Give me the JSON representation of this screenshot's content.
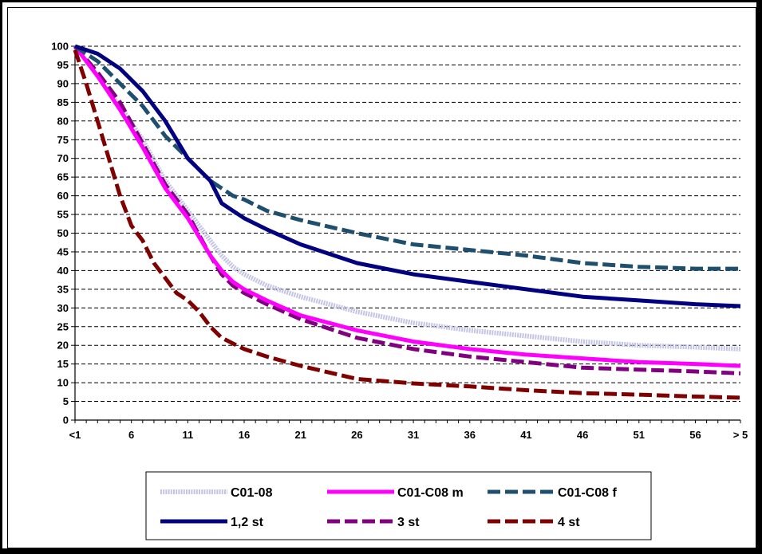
{
  "chart_data": {
    "type": "line",
    "title": "",
    "xlabel": "",
    "ylabel": "",
    "ylim": [
      0,
      100
    ],
    "y_ticks": [
      "0",
      "5",
      "10",
      "15",
      "20",
      "25",
      "30",
      "35",
      "40",
      "45",
      "50",
      "55",
      "60",
      "65",
      "70",
      "75",
      "80",
      "85",
      "90",
      "95",
      "100"
    ],
    "x_tick_labels": [
      "<1",
      "6",
      "11",
      "16",
      "21",
      "26",
      "31",
      "36",
      "41",
      "46",
      "51",
      "56",
      "> 5"
    ],
    "x_count": 60,
    "grid": "horizontal dashed",
    "legend_position": "bottom",
    "series": [
      {
        "name": "C01-08",
        "color": "#c4c4e6",
        "style": "dotted-thick",
        "points": [
          [
            1,
            100
          ],
          [
            3,
            92
          ],
          [
            5,
            84
          ],
          [
            7,
            75
          ],
          [
            9,
            64
          ],
          [
            11,
            56
          ],
          [
            13,
            48
          ],
          [
            14,
            44
          ],
          [
            15,
            41
          ],
          [
            16,
            39
          ],
          [
            18,
            36
          ],
          [
            21,
            33
          ],
          [
            26,
            29
          ],
          [
            31,
            26
          ],
          [
            36,
            24
          ],
          [
            41,
            22.5
          ],
          [
            46,
            21
          ],
          [
            51,
            20
          ],
          [
            56,
            19.5
          ],
          [
            60,
            19
          ]
        ]
      },
      {
        "name": "C01-C08 m",
        "color": "#ff00ff",
        "style": "solid",
        "points": [
          [
            1,
            100
          ],
          [
            3,
            92
          ],
          [
            5,
            83
          ],
          [
            7,
            73
          ],
          [
            9,
            62
          ],
          [
            11,
            54
          ],
          [
            13,
            44
          ],
          [
            14,
            40
          ],
          [
            15,
            37
          ],
          [
            16,
            35
          ],
          [
            18,
            32
          ],
          [
            21,
            28
          ],
          [
            26,
            24
          ],
          [
            31,
            21
          ],
          [
            36,
            19
          ],
          [
            41,
            17.5
          ],
          [
            46,
            16.5
          ],
          [
            51,
            15.5
          ],
          [
            56,
            15
          ],
          [
            60,
            14.5
          ]
        ]
      },
      {
        "name": "C01-C08 f",
        "color": "#1f4f6e",
        "style": "dashed",
        "points": [
          [
            1,
            100
          ],
          [
            3,
            96
          ],
          [
            5,
            90
          ],
          [
            7,
            84
          ],
          [
            9,
            76
          ],
          [
            11,
            70
          ],
          [
            13,
            64
          ],
          [
            14,
            62
          ],
          [
            15,
            60
          ],
          [
            16,
            59
          ],
          [
            18,
            56
          ],
          [
            21,
            53.5
          ],
          [
            26,
            50
          ],
          [
            31,
            47
          ],
          [
            36,
            45.5
          ],
          [
            41,
            44
          ],
          [
            46,
            42
          ],
          [
            51,
            41
          ],
          [
            56,
            40.5
          ],
          [
            60,
            40.5
          ]
        ]
      },
      {
        "name": "1,2 st",
        "color": "#000080",
        "style": "solid",
        "points": [
          [
            1,
            100
          ],
          [
            3,
            98
          ],
          [
            5,
            94
          ],
          [
            7,
            88
          ],
          [
            9,
            80
          ],
          [
            11,
            70
          ],
          [
            13,
            64
          ],
          [
            14,
            58
          ],
          [
            15,
            56
          ],
          [
            16,
            54
          ],
          [
            18,
            51
          ],
          [
            21,
            47
          ],
          [
            26,
            42
          ],
          [
            31,
            39
          ],
          [
            36,
            37
          ],
          [
            41,
            35
          ],
          [
            46,
            33
          ],
          [
            51,
            32
          ],
          [
            56,
            31
          ],
          [
            60,
            30.5
          ]
        ]
      },
      {
        "name": "3 st",
        "color": "#800080",
        "style": "dashed",
        "points": [
          [
            1,
            100
          ],
          [
            3,
            93
          ],
          [
            5,
            85
          ],
          [
            7,
            74
          ],
          [
            9,
            63
          ],
          [
            11,
            55
          ],
          [
            13,
            44
          ],
          [
            14,
            39
          ],
          [
            15,
            36
          ],
          [
            16,
            34
          ],
          [
            18,
            31
          ],
          [
            21,
            27
          ],
          [
            26,
            22
          ],
          [
            31,
            19
          ],
          [
            36,
            17
          ],
          [
            41,
            15.5
          ],
          [
            46,
            14
          ],
          [
            51,
            13.5
          ],
          [
            56,
            13
          ],
          [
            60,
            12.5
          ]
        ]
      },
      {
        "name": "4 st",
        "color": "#800000",
        "style": "dashed",
        "points": [
          [
            1,
            99
          ],
          [
            2,
            90
          ],
          [
            3,
            80
          ],
          [
            4,
            70
          ],
          [
            5,
            60
          ],
          [
            6,
            52
          ],
          [
            7,
            48
          ],
          [
            8,
            42
          ],
          [
            9,
            38
          ],
          [
            10,
            34
          ],
          [
            11,
            32
          ],
          [
            12,
            29
          ],
          [
            13,
            25
          ],
          [
            14,
            22
          ],
          [
            16,
            19
          ],
          [
            18,
            17
          ],
          [
            21,
            14.5
          ],
          [
            26,
            11
          ],
          [
            31,
            9.8
          ],
          [
            36,
            9
          ],
          [
            41,
            8
          ],
          [
            46,
            7.2
          ],
          [
            51,
            6.8
          ],
          [
            56,
            6.3
          ],
          [
            60,
            6
          ]
        ]
      }
    ]
  }
}
